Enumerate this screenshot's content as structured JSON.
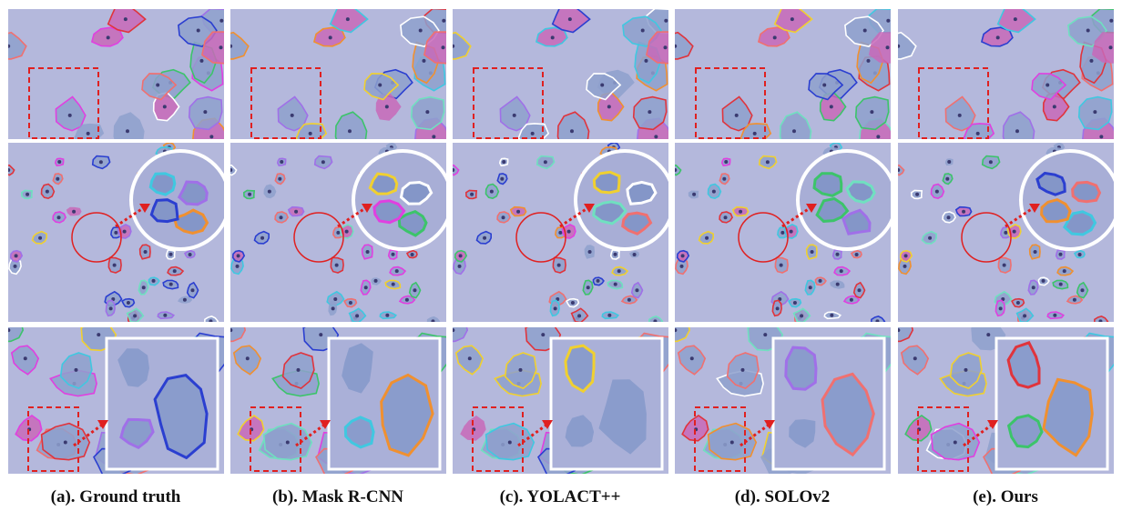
{
  "figure": {
    "captions": [
      "(a). Ground truth",
      "(b). Mask R-CNN",
      "(c). YOLACT++",
      "(d). SOLOv2",
      "(e). Ours"
    ]
  }
}
